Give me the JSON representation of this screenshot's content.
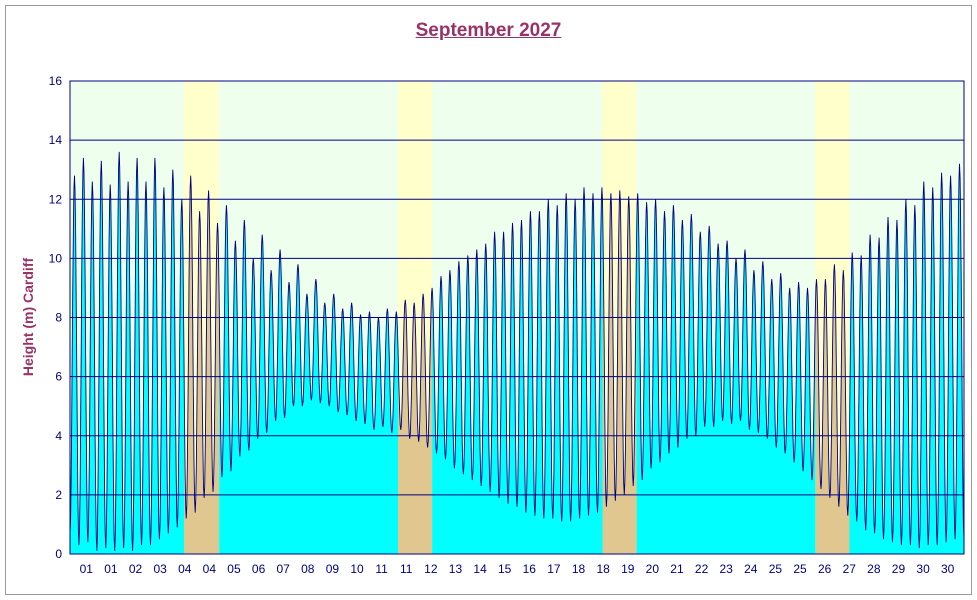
{
  "chart_data": {
    "type": "area",
    "title": "September 2027",
    "xlabel": "",
    "ylabel": "Height (m) Cardiff",
    "ylim": [
      0,
      16
    ],
    "yticks": [
      0,
      2,
      4,
      6,
      8,
      10,
      12,
      14,
      16
    ],
    "grid": true,
    "legend": "none",
    "x_tick_labels": [
      "01",
      "01",
      "02",
      "03",
      "04",
      "04",
      "05",
      "06",
      "07",
      "08",
      "09",
      "10",
      "11",
      "11",
      "12",
      "13",
      "14",
      "15",
      "16",
      "17",
      "18",
      "18",
      "19",
      "20",
      "21",
      "22",
      "23",
      "24",
      "25",
      "25",
      "26",
      "27",
      "28",
      "29",
      "30",
      "30"
    ],
    "x_tick_day_fraction": [
      0,
      1,
      2,
      3,
      4,
      5,
      6,
      7,
      8,
      9,
      10,
      11,
      12,
      13,
      14,
      15,
      16,
      17,
      18,
      19,
      20,
      21,
      22,
      23,
      24,
      25,
      26,
      27,
      28,
      29,
      30,
      31,
      32,
      33,
      34,
      35
    ],
    "x_range_days": [
      0,
      30
    ],
    "highlight_periods": [
      {
        "from_day": 3.82,
        "to_day": 5.0
      },
      {
        "from_day": 11.0,
        "to_day": 12.15
      },
      {
        "from_day": 17.85,
        "to_day": 19.0
      },
      {
        "from_day": 25.0,
        "to_day": 26.15
      }
    ],
    "tide_extremes": {
      "high_tide_heights": [
        12.8,
        13.4,
        12.6,
        13.3,
        12.5,
        13.6,
        12.6,
        13.4,
        12.6,
        13.4,
        12.4,
        13.0,
        12.0,
        12.8,
        11.6,
        12.3,
        11.2,
        11.8,
        10.6,
        11.3,
        10.0,
        10.8,
        9.6,
        10.3,
        9.2,
        9.8,
        8.8,
        9.3,
        8.5,
        8.8,
        8.3,
        8.5,
        8.1,
        8.2,
        8.0,
        8.3,
        8.2,
        8.6,
        8.5,
        8.8,
        9.0,
        9.4,
        9.6,
        9.9,
        10.1,
        10.3,
        10.5,
        10.9,
        10.9,
        11.2,
        11.3,
        11.6,
        11.6,
        12.0,
        11.8,
        12.2,
        12.0,
        12.4,
        12.2,
        12.4,
        12.2,
        12.3,
        12.1,
        12.2,
        11.9,
        12.0,
        11.6,
        11.8,
        11.3,
        11.5,
        10.9,
        11.1,
        10.5,
        10.6,
        10.0,
        10.3,
        9.6,
        9.9,
        9.3,
        9.5,
        9.0,
        9.2,
        9.0,
        9.3,
        9.3,
        9.8,
        9.6,
        10.2,
        10.1,
        10.8,
        10.7,
        11.4,
        11.3,
        12.0,
        11.8,
        12.6,
        12.4,
        12.9,
        12.8,
        13.2
      ],
      "low_tide_heights": [
        0.7,
        0.3,
        0.4,
        0.1,
        0.2,
        0.1,
        0.2,
        0.1,
        0.3,
        0.3,
        0.5,
        0.7,
        0.9,
        1.2,
        1.4,
        1.9,
        2.1,
        2.6,
        2.8,
        3.3,
        3.5,
        3.9,
        4.1,
        4.5,
        4.6,
        5.0,
        5.0,
        5.2,
        5.1,
        5.0,
        4.8,
        4.7,
        4.5,
        4.4,
        4.2,
        4.3,
        4.1,
        4.2,
        3.9,
        3.8,
        3.6,
        3.4,
        3.2,
        2.9,
        2.7,
        2.5,
        2.3,
        2.1,
        1.9,
        1.7,
        1.6,
        1.4,
        1.3,
        1.2,
        1.2,
        1.1,
        1.1,
        1.2,
        1.3,
        1.4,
        1.6,
        1.8,
        2.0,
        2.3,
        2.5,
        2.9,
        3.1,
        3.4,
        3.6,
        3.9,
        4.0,
        4.3,
        4.3,
        4.5,
        4.4,
        4.5,
        4.2,
        4.1,
        3.9,
        3.6,
        3.4,
        3.1,
        2.8,
        2.5,
        2.2,
        1.9,
        1.6,
        1.3,
        1.1,
        0.8,
        0.7,
        0.5,
        0.4,
        0.3,
        0.3,
        0.2,
        0.3,
        0.3,
        0.4,
        0.5
      ]
    },
    "colors": {
      "fill": "#00FFFF",
      "fill_highlight": "#E0C78F",
      "line": "#000080",
      "bg_band": "#EEFFEE",
      "bg_band_highlight": "#FFFFCC",
      "gridline": "#000080",
      "title": "#993366",
      "axis_label": "#993366",
      "tick_label": "#000080"
    }
  }
}
